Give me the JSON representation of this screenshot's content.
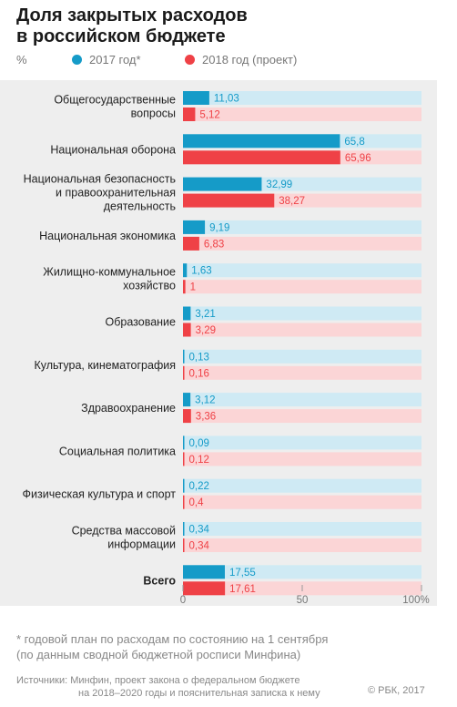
{
  "title_line1": "Доля закрытых расходов",
  "title_line2": "в российском бюджете",
  "legend": {
    "unit": "%",
    "series1": "2017 год*",
    "series2": "2018 год (проект)"
  },
  "colors": {
    "series1": "#159bc8",
    "series1_light": "#cfeaf4",
    "series2": "#ef4146",
    "series2_light": "#fbd5d6"
  },
  "chart_data": {
    "type": "bar",
    "orientation": "horizontal",
    "categories": [
      [
        "Общегосударственные",
        "вопросы"
      ],
      [
        "Национальная оборона"
      ],
      [
        "Национальная безопасность",
        "и правоохранительная",
        "деятельность"
      ],
      [
        "Национальная экономика"
      ],
      [
        "Жилищно-коммунальное",
        "хозяйство"
      ],
      [
        "Образование"
      ],
      [
        "Культура, кинематография"
      ],
      [
        "Здравоохранение"
      ],
      [
        "Социальная политика"
      ],
      [
        "Физическая культура и спорт"
      ],
      [
        "Средства массовой",
        "информации"
      ],
      [
        "Всего"
      ]
    ],
    "series": [
      {
        "name": "2017 год*",
        "values": [
          11.03,
          65.8,
          32.99,
          9.19,
          1.63,
          3.21,
          0.13,
          3.12,
          0.09,
          0.22,
          0.34,
          17.55
        ],
        "labels": [
          "11,03",
          "65,8",
          "32,99",
          "9,19",
          "1,63",
          "3,21",
          "0,13",
          "3,12",
          "0,09",
          "0,22",
          "0,34",
          "17,55"
        ]
      },
      {
        "name": "2018 год (проект)",
        "values": [
          5.12,
          65.96,
          38.27,
          6.83,
          1,
          3.29,
          0.16,
          3.36,
          0.12,
          0.4,
          0.34,
          17.61
        ],
        "labels": [
          "5,12",
          "65,96",
          "38,27",
          "6,83",
          "1",
          "3,29",
          "0,16",
          "3,36",
          "0,12",
          "0,4",
          "0,34",
          "17,61"
        ]
      }
    ],
    "xlim": [
      0,
      100
    ],
    "xticks": [
      0,
      50,
      100
    ],
    "xtick_labels": [
      "0",
      "50",
      "100%"
    ],
    "bold_category_index": 11
  },
  "footnote_line1": "* годовой план по расходам по состоянию на 1 сентября",
  "footnote_line2": "(по данным сводной бюджетной росписи Минфина)",
  "source_line1": "Источники: Минфин, проект закона о федеральном бюджете",
  "source_line2": "на 2018–2020 годы и пояснительная записка к нему",
  "copyright": "© РБК, 2017"
}
